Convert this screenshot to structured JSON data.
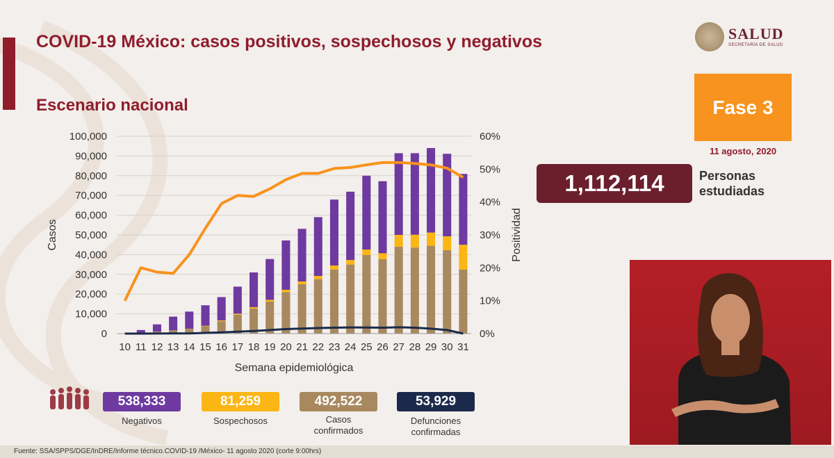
{
  "header": {
    "title": "COVID-19 México: casos positivos, sospechosos y negativos",
    "subtitle": "Escenario nacional",
    "logo_text": "SALUD",
    "logo_subtext": "SECRETARÍA DE SALUD"
  },
  "phase": {
    "label": "Fase 3",
    "date": "11 agosto, 2020"
  },
  "studied": {
    "value": "1,112,114",
    "label_line1": "Personas",
    "label_line2": "estudiadas"
  },
  "colors": {
    "confirmados": "#a8895f",
    "sospechosos": "#fbb615",
    "negativos": "#6e3aa0",
    "positividad": "#f7931e",
    "defunciones": "#1b2a4a",
    "brand": "#8f1d2c"
  },
  "chart_data": {
    "type": "bar",
    "stacked": true,
    "xlabel": "Semana epidemiológica",
    "ylabel": "Casos",
    "y2label": "Positividad",
    "ylim": [
      0,
      100000
    ],
    "y2lim": [
      0,
      60
    ],
    "yticks": [
      "100,000",
      "90,000",
      "80,000",
      "70,000",
      "60,000",
      "50,000",
      "40,000",
      "30,000",
      "20,000",
      "10,000",
      "0"
    ],
    "y2ticks": [
      "60%",
      "50%",
      "40%",
      "30%",
      "20%",
      "10%",
      "0%"
    ],
    "categories": [
      "10",
      "11",
      "12",
      "13",
      "14",
      "15",
      "16",
      "17",
      "18",
      "19",
      "20",
      "21",
      "22",
      "23",
      "24",
      "25",
      "26",
      "27",
      "28",
      "29",
      "30",
      "31"
    ],
    "series": [
      {
        "key": "confirmados",
        "values": [
          10,
          300,
          900,
          1500,
          2300,
          3700,
          6300,
          9600,
          12700,
          16200,
          21000,
          25000,
          27600,
          32500,
          35000,
          39800,
          37700,
          44000,
          43600,
          44500,
          42300,
          32500
        ]
      },
      {
        "key": "sospechosos",
        "values": [
          0,
          20,
          80,
          100,
          150,
          250,
          400,
          500,
          700,
          900,
          1200,
          1400,
          1600,
          2000,
          2300,
          2800,
          3000,
          6000,
          6500,
          6700,
          7000,
          12500
        ]
      },
      {
        "key": "negativos",
        "values": [
          100,
          1500,
          3700,
          7000,
          8700,
          10400,
          11800,
          13700,
          17600,
          20700,
          25000,
          26700,
          29800,
          33400,
          34600,
          37400,
          36500,
          41400,
          41300,
          42800,
          41800,
          35900
        ]
      },
      {
        "key": "positividad",
        "axis": "y2",
        "values": [
          10,
          20,
          18.7,
          18.3,
          24,
          32,
          39.5,
          42,
          41.7,
          44,
          46.8,
          48.7,
          48.7,
          50.2,
          50.5,
          51.3,
          52,
          52,
          51.7,
          51.3,
          50.3,
          47.5
        ]
      },
      {
        "key": "defunciones",
        "values": [
          0,
          5,
          20,
          60,
          120,
          350,
          600,
          950,
          1300,
          1800,
          2300,
          2550,
          2800,
          3000,
          3150,
          3100,
          3000,
          3200,
          3000,
          2500,
          1800,
          0
        ]
      }
    ]
  },
  "stats": [
    {
      "value": "538,333",
      "label": "Negativos",
      "label2": ""
    },
    {
      "value": "81,259",
      "label": "Sospechosos",
      "label2": ""
    },
    {
      "value": "492,522",
      "label": "Casos",
      "label2": "confirmados"
    },
    {
      "value": "53,929",
      "label": "Defunciones",
      "label2": "confirmadas"
    }
  ],
  "footer": "Fuente: SSA/SPPS/DGE/InDRE/Informe técnico.COVID-19 /México- 11 agosto 2020 (corte 9:00hrs)"
}
